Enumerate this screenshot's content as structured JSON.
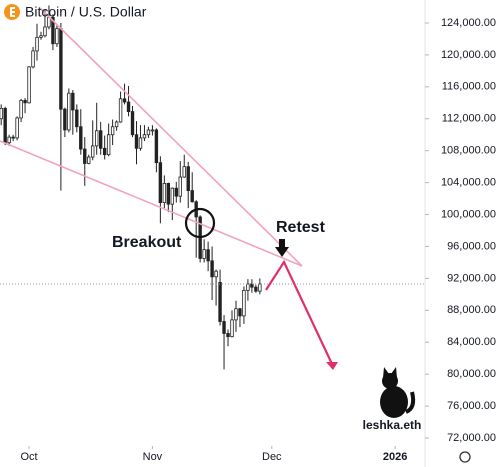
{
  "chart_data": {
    "type": "candlestick",
    "title": "Bitcoin / U.S. Dollar",
    "annotations": {
      "breakout": "Breakout",
      "retest": "Retest",
      "watermark": "leshka.eth"
    },
    "categories": [
      null,
      null,
      null,
      null,
      null,
      null,
      null,
      null,
      null,
      null,
      null,
      null,
      null,
      null,
      null,
      null,
      null,
      null,
      null,
      null,
      null,
      null,
      null,
      null,
      null,
      null,
      null,
      null,
      null,
      null,
      null,
      null,
      null,
      null,
      null,
      null,
      null,
      null,
      null,
      null,
      null,
      null,
      null,
      null,
      null,
      null,
      null,
      null,
      null,
      null,
      null,
      null,
      null,
      null,
      null,
      null,
      null,
      null,
      null,
      null,
      null,
      null,
      null,
      null,
      null,
      null
    ],
    "open": [
      112000,
      113300,
      109000,
      109700,
      109600,
      112100,
      114300,
      114000,
      118500,
      120500,
      122200,
      122400,
      123500,
      124700,
      121400,
      123300,
      113200,
      110600,
      115200,
      113100,
      111000,
      108200,
      106400,
      107200,
      108600,
      110500,
      108300,
      107500,
      110000,
      111000,
      111600,
      114500,
      114100,
      112900,
      110000,
      108300,
      109600,
      110000,
      110600,
      110600,
      106500,
      101500,
      103900,
      101300,
      103300,
      102300,
      104700,
      106000,
      103000,
      101600,
      99700,
      94500,
      95600,
      94200,
      92200,
      91500,
      86600,
      85100,
      84700,
      86800,
      88200,
      87300,
      90500,
      91300,
      90900,
      90400
    ],
    "high": [
      113800,
      113500,
      110000,
      110000,
      112300,
      114500,
      114600,
      118600,
      121000,
      123900,
      122900,
      125700,
      126200,
      125100,
      123700,
      124000,
      113400,
      115800,
      115600,
      113800,
      113200,
      109700,
      107500,
      111800,
      114000,
      111600,
      109900,
      111400,
      111900,
      111800,
      115400,
      116400,
      116100,
      113600,
      111700,
      111200,
      111200,
      111000,
      111200,
      110800,
      107300,
      104900,
      104000,
      103400,
      104100,
      106700,
      107500,
      106600,
      105300,
      101800,
      99900,
      96900,
      96600,
      96000,
      93100,
      93100,
      87400,
      85600,
      88000,
      89200,
      88300,
      91000,
      91900,
      91900,
      91200,
      92000
    ],
    "low": [
      111200,
      108700,
      108600,
      109200,
      109300,
      111600,
      112700,
      113900,
      118300,
      119300,
      121900,
      122200,
      123200,
      120600,
      121000,
      103000,
      109700,
      110300,
      110000,
      110300,
      107500,
      103600,
      106300,
      106800,
      107500,
      107500,
      106900,
      107300,
      108700,
      110500,
      111500,
      113800,
      112300,
      109700,
      106300,
      108000,
      109200,
      109600,
      109900,
      105300,
      98900,
      100800,
      100300,
      99300,
      101500,
      101500,
      104600,
      100800,
      101500,
      94600,
      94000,
      94000,
      92900,
      89300,
      88600,
      86100,
      80600,
      83500,
      84600,
      85300,
      85900,
      86300,
      89200,
      90200,
      90200,
      90000
    ],
    "close": [
      113300,
      109000,
      109700,
      109600,
      112100,
      114300,
      114000,
      118500,
      120500,
      122200,
      122400,
      123500,
      124700,
      121400,
      123300,
      113200,
      110600,
      115200,
      113100,
      111000,
      108200,
      106400,
      107200,
      108600,
      110500,
      108300,
      107500,
      110000,
      111000,
      111600,
      114500,
      114100,
      112900,
      110000,
      108300,
      109600,
      110000,
      110600,
      110600,
      106500,
      101500,
      103900,
      101300,
      103300,
      102300,
      104700,
      106000,
      103000,
      101600,
      99700,
      94500,
      95600,
      94200,
      92200,
      92900,
      86600,
      85100,
      84700,
      86800,
      88200,
      87300,
      90500,
      91300,
      90900,
      90400,
      91300
    ],
    "up_color": "#ffffff",
    "down_color": "#222222",
    "ylim": [
      71000,
      126880
    ],
    "yticks": [
      {
        "value": 124000,
        "label": "124,000.00"
      },
      {
        "value": 120000,
        "label": "120,000.00"
      },
      {
        "value": 116000,
        "label": "116,000.00"
      },
      {
        "value": 112000,
        "label": "112,000.00"
      },
      {
        "value": 108000,
        "label": "108,000.00"
      },
      {
        "value": 104000,
        "label": "104,000.00"
      },
      {
        "value": 100000,
        "label": "100,000.00"
      },
      {
        "value": 96000,
        "label": "96,000.00"
      },
      {
        "value": 92000,
        "label": "92,000.00"
      },
      {
        "value": 88000,
        "label": "88,000.00"
      },
      {
        "value": 84000,
        "label": "84,000.00"
      },
      {
        "value": 80000,
        "label": "80,000.00"
      },
      {
        "value": 76000,
        "label": "76,000.00"
      },
      {
        "value": 72000,
        "label": "72,000.00"
      }
    ],
    "xlim": [
      -0.3,
      106.5
    ],
    "xticks": [
      {
        "value": 7,
        "label": "Oct"
      },
      {
        "value": 38,
        "label": "Nov"
      },
      {
        "value": 68,
        "label": "Dec"
      },
      {
        "value": 99,
        "label": "2026"
      }
    ]
  }
}
